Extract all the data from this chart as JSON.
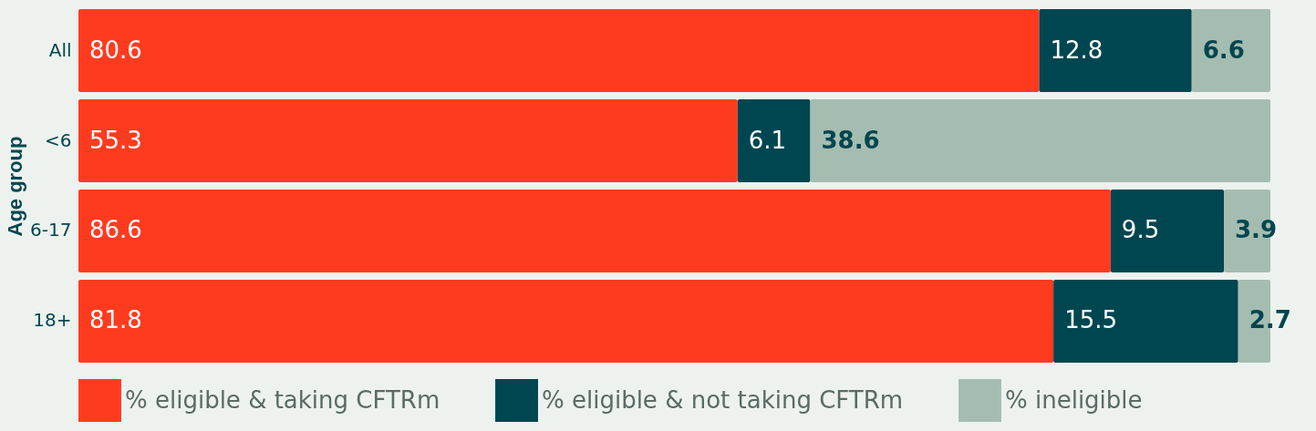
{
  "chart_data": {
    "type": "bar",
    "orientation": "horizontal",
    "stacked": true,
    "ylabel": "Age group",
    "categories": [
      "All",
      "<6",
      "6-17",
      "18+"
    ],
    "series": [
      {
        "name": "% eligible & taking CFTRm",
        "color": "#ff3b1f",
        "values": [
          80.6,
          55.3,
          86.6,
          81.8
        ]
      },
      {
        "name": "% eligible & not taking CFTRm",
        "color": "#004650",
        "values": [
          12.8,
          6.1,
          9.5,
          15.5
        ]
      },
      {
        "name": "% ineligible",
        "color": "#a5bdb0",
        "values": [
          6.6,
          38.6,
          3.9,
          2.7
        ]
      }
    ],
    "data_labels": true,
    "legend": "bottom",
    "grid": false
  }
}
